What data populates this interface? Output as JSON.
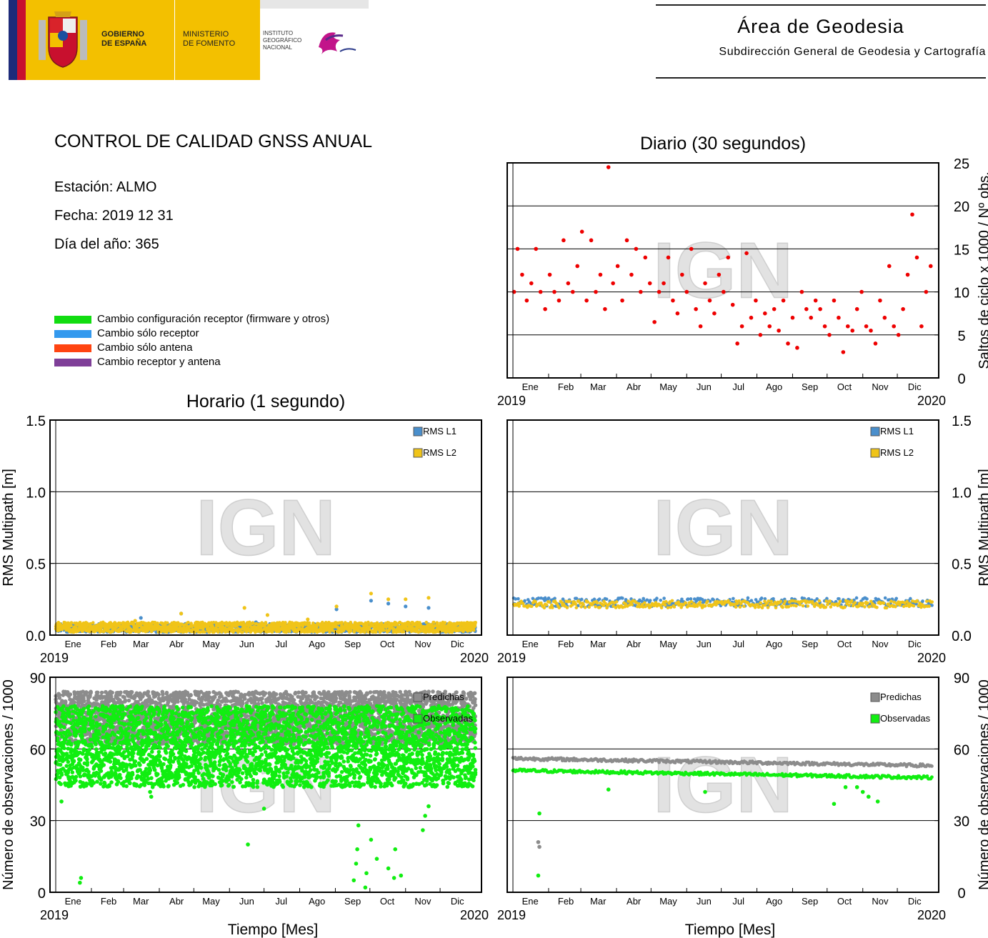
{
  "header": {
    "gobierno": [
      "GOBIERNO",
      "DE ESPAÑA"
    ],
    "ministerio": [
      "MINISTERIO",
      "DE FOMENTO"
    ],
    "instituto": [
      "INSTITUTO",
      "GEOGRÁFICO",
      "NACIONAL"
    ],
    "area_title": "Área de Geodesia",
    "area_subtitle": "Subdirección General de Geodesia y Cartografía",
    "colors": {
      "gov_yellow": "#f3c000",
      "gov_blue": "#1d2b7a",
      "gov_red": "#c8102e"
    }
  },
  "report": {
    "title": "CONTROL DE CALIDAD GNSS ANUAL",
    "station": "Estación: ALMO",
    "date": "Fecha: 2019 12 31",
    "doy": "Día del año: 365"
  },
  "legend": [
    {
      "label": "Cambio configuración receptor (firmware y otros)",
      "color": "#11dd11"
    },
    {
      "label": "Cambio sólo receptor",
      "color": "#3399ee"
    },
    {
      "label": "Cambio sólo antena",
      "color": "#ff4411"
    },
    {
      "label": "Cambio receptor y antena",
      "color": "#7f3f98"
    }
  ],
  "watermark": "IGN",
  "section_titles": {
    "daily": "Diario (30 segundos)",
    "hourly": "Horario (1 segundo)"
  },
  "chart_data": [
    {
      "id": "daily-cycle-slips",
      "type": "scatter",
      "title": "Diario (30 segundos)",
      "ylabel": "Saltos de ciclo x 1000 / Nº obs.",
      "xlabel": "",
      "months": [
        "Ene",
        "Feb",
        "Mar",
        "Abr",
        "May",
        "Jun",
        "Jul",
        "Ago",
        "Sep",
        "Oct",
        "Nov",
        "Dic"
      ],
      "year_start": "2019",
      "year_end": "2020",
      "xlim": [
        1,
        366
      ],
      "ylim": [
        0,
        25
      ],
      "yticks": [
        0,
        5,
        10,
        15,
        20,
        25
      ],
      "ytick_labels": [
        "0",
        "5",
        "10",
        "15",
        "20",
        "25"
      ],
      "yaxis_side": "right",
      "grid": true,
      "series": [
        {
          "color": "#ee0000",
          "x": [
            2,
            5,
            9,
            13,
            17,
            21,
            25,
            29,
            33,
            37,
            41,
            45,
            49,
            53,
            57,
            61,
            65,
            69,
            73,
            77,
            81,
            84,
            88,
            92,
            96,
            100,
            104,
            108,
            112,
            116,
            120,
            124,
            128,
            132,
            136,
            140,
            144,
            148,
            152,
            156,
            160,
            164,
            168,
            172,
            176,
            180,
            184,
            188,
            192,
            196,
            200,
            204,
            208,
            212,
            216,
            220,
            224,
            228,
            232,
            236,
            240,
            244,
            248,
            252,
            256,
            260,
            264,
            268,
            272,
            276,
            280,
            284,
            288,
            292,
            296,
            300,
            304,
            308,
            312,
            316,
            320,
            324,
            328,
            332,
            336,
            340,
            344,
            348,
            352,
            356,
            360,
            364
          ],
          "y": [
            10,
            15,
            12,
            9,
            11,
            15,
            10,
            8,
            12,
            10,
            9,
            16,
            11,
            10,
            13,
            17,
            9,
            16,
            10,
            12,
            8,
            24.5,
            11,
            13,
            9,
            16,
            12,
            15,
            10,
            14,
            11,
            6.5,
            10,
            11,
            14,
            9,
            7.5,
            12,
            10,
            15,
            8,
            6,
            11,
            9,
            7.5,
            12,
            10,
            14,
            8.5,
            4,
            6,
            14.5,
            7,
            9,
            5,
            7.5,
            6,
            8,
            5.5,
            9,
            4,
            7,
            3.5,
            10,
            8,
            7,
            9,
            8,
            6,
            5,
            9,
            7,
            3,
            6,
            5.5,
            8,
            10,
            6,
            5.5,
            4,
            9,
            7,
            13,
            6,
            5,
            8,
            12,
            19,
            14,
            6,
            10,
            13
          ]
        }
      ]
    },
    {
      "id": "hourly-rms-multipath",
      "type": "scatter",
      "ylabel": "RMS Multipath [m]",
      "months": [
        "Ene",
        "Feb",
        "Mar",
        "Abr",
        "May",
        "Jun",
        "Jul",
        "Ago",
        "Sep",
        "Oct",
        "Nov",
        "Dic"
      ],
      "year_start": "2019",
      "year_end": "2020",
      "xlim": [
        1,
        366
      ],
      "ylim": [
        0,
        1.5
      ],
      "yticks": [
        0,
        0.5,
        1.0,
        1.5
      ],
      "ytick_labels": [
        "0.0",
        "0.5",
        "1.0",
        "1.5"
      ],
      "yaxis_side": "left",
      "grid": true,
      "series": [
        {
          "name": "RMS L1",
          "color": "#4a8fcc",
          "x": [
            75,
            110,
            175,
            245,
            275,
            290,
            305,
            325
          ],
          "y": [
            0.12,
            0.15,
            0.09,
            0.18,
            0.24,
            0.22,
            0.2,
            0.19
          ],
          "band": [
            0.02,
            0.08
          ]
        },
        {
          "name": "RMS L2",
          "color": "#f0c419",
          "x": [
            70,
            110,
            165,
            185,
            220,
            245,
            275,
            290,
            305,
            325
          ],
          "y": [
            0.1,
            0.15,
            0.19,
            0.14,
            0.11,
            0.2,
            0.29,
            0.25,
            0.25,
            0.26
          ],
          "band": [
            0.02,
            0.09
          ]
        }
      ]
    },
    {
      "id": "daily-rms-multipath",
      "type": "scatter",
      "ylabel": "RMS Multipath [m]",
      "months": [
        "Ene",
        "Feb",
        "Mar",
        "Abr",
        "May",
        "Jun",
        "Jul",
        "Ago",
        "Sep",
        "Oct",
        "Nov",
        "Dic"
      ],
      "year_start": "2019",
      "year_end": "2020",
      "xlim": [
        1,
        366
      ],
      "ylim": [
        0,
        1.5
      ],
      "yticks": [
        0,
        0.5,
        1.0,
        1.5
      ],
      "ytick_labels": [
        "0.0",
        "0.5",
        "1.0",
        "1.5"
      ],
      "yaxis_side": "right",
      "grid": true,
      "series": [
        {
          "name": "RMS L1",
          "color": "#4a8fcc",
          "band": [
            0.2,
            0.26
          ]
        },
        {
          "name": "RMS L2",
          "color": "#f0c419",
          "band": [
            0.19,
            0.24
          ]
        }
      ]
    },
    {
      "id": "hourly-observations",
      "type": "scatter",
      "ylabel": "Número de observaciones / 1000",
      "xlabel": "Tiempo [Mes]",
      "months": [
        "Ene",
        "Feb",
        "Mar",
        "Abr",
        "May",
        "Jun",
        "Jul",
        "Ago",
        "Sep",
        "Oct",
        "Nov",
        "Dic"
      ],
      "year_start": "2019",
      "year_end": "2020",
      "xlim": [
        1,
        366
      ],
      "ylim": [
        0,
        90
      ],
      "yticks": [
        0,
        30,
        60,
        90
      ],
      "ytick_labels": [
        "0",
        "30",
        "60",
        "90"
      ],
      "yaxis_side": "left",
      "grid": true,
      "series": [
        {
          "name": "Predichas",
          "color": "#8c8c8c",
          "band": [
            62,
            84
          ]
        },
        {
          "name": "Observadas",
          "color": "#11ee11",
          "band": [
            44,
            78
          ],
          "outliers_x": [
            6,
            22,
            23,
            83,
            84,
            168,
            182,
            260,
            262,
            263,
            264,
            270,
            271,
            275,
            280,
            290,
            295,
            296,
            301,
            320,
            322,
            325
          ],
          "outliers_y": [
            38,
            4,
            6,
            42,
            40,
            20,
            35,
            5,
            12,
            18,
            28,
            2,
            8,
            22,
            14,
            10,
            6,
            18,
            7,
            26,
            32,
            36
          ]
        }
      ]
    },
    {
      "id": "daily-observations",
      "type": "scatter",
      "ylabel": "Número de observaciones / 1000",
      "xlabel": "Tiempo [Mes]",
      "months": [
        "Ene",
        "Feb",
        "Mar",
        "Abr",
        "May",
        "Jun",
        "Jul",
        "Ago",
        "Sep",
        "Oct",
        "Nov",
        "Dic"
      ],
      "year_start": "2019",
      "year_end": "2020",
      "xlim": [
        1,
        366
      ],
      "ylim": [
        0,
        90
      ],
      "yticks": [
        0,
        30,
        60,
        90
      ],
      "ytick_labels": [
        "0",
        "30",
        "60",
        "90"
      ],
      "yaxis_side": "right",
      "grid": true,
      "series": [
        {
          "name": "Predichas",
          "color": "#8c8c8c",
          "start": 56,
          "end": 53,
          "outliers_x": [
            23,
            24
          ],
          "outliers_y": [
            21,
            19
          ]
        },
        {
          "name": "Observadas",
          "color": "#11ee11",
          "start": 51,
          "end": 48,
          "outliers_x": [
            23,
            24,
            84,
            168,
            280,
            290,
            300,
            305,
            310,
            318
          ],
          "outliers_y": [
            7,
            33,
            43,
            42,
            37,
            44,
            44,
            42,
            40,
            38
          ]
        }
      ]
    }
  ]
}
